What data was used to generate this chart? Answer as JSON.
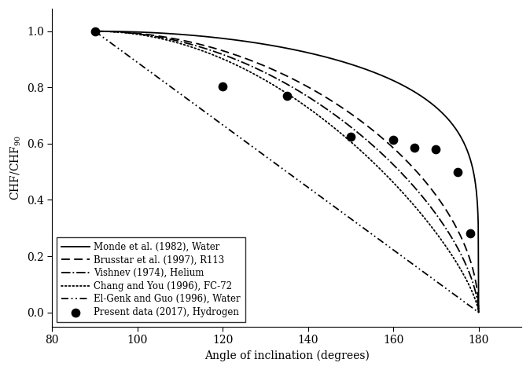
{
  "xlabel": "Angle of inclination (degrees)",
  "xlim": [
    80,
    190
  ],
  "ylim": [
    -0.05,
    1.08
  ],
  "xticks": [
    80,
    100,
    120,
    140,
    160,
    180
  ],
  "yticks": [
    0.0,
    0.2,
    0.4,
    0.6,
    0.8,
    1.0
  ],
  "scatter_x": [
    90,
    120,
    135,
    150,
    160,
    165,
    170,
    175,
    178
  ],
  "scatter_y": [
    1.0,
    0.805,
    0.77,
    0.625,
    0.615,
    0.585,
    0.58,
    0.5,
    0.28
  ],
  "legend": [
    "Monde et al. (1982), Water",
    "Brusstar et al. (1997), R113",
    "Vishnev (1974), Helium",
    "Chang and You (1996), FC-72",
    "El-Genk and Guo (1996), Water",
    "Present data (2017), Hydrogen"
  ],
  "background_color": "#ffffff",
  "font_size": 10,
  "monde_n": 0.18,
  "brusstar_n": 0.5,
  "vishnev_n": 0.6,
  "chang_n": 0.72,
  "elgenk_n": 1.0
}
